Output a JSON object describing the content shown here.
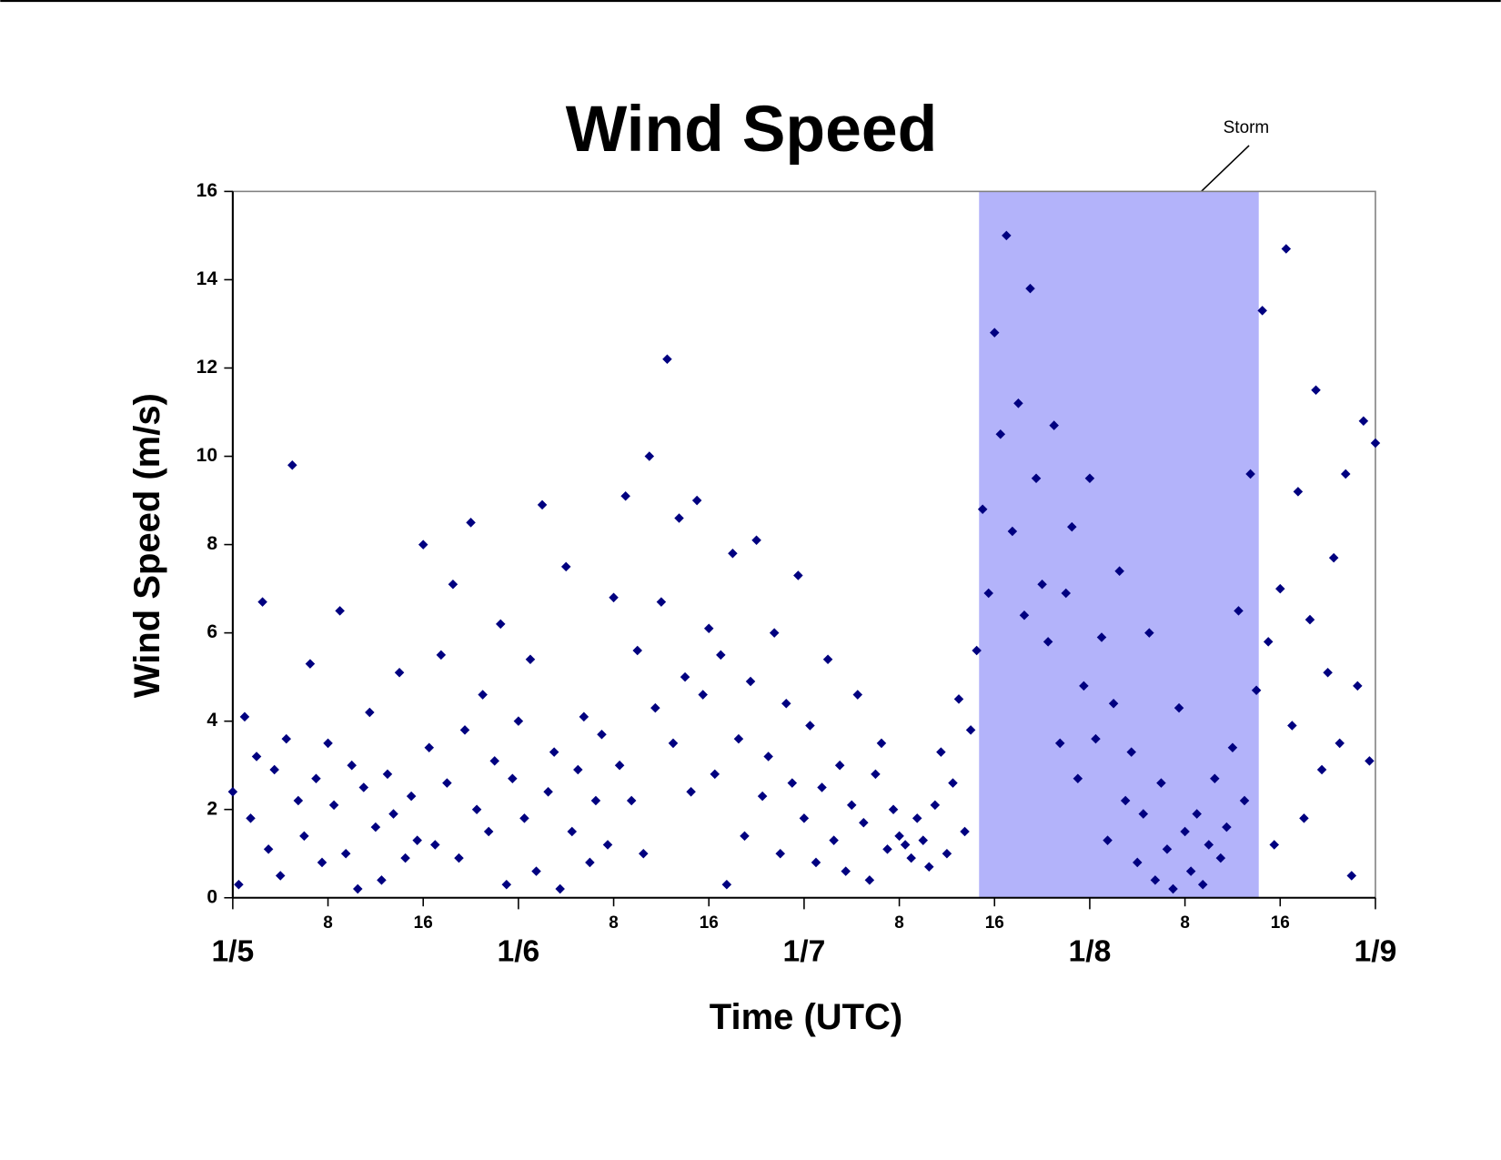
{
  "chart_data": {
    "type": "scatter",
    "title": "Wind Speed",
    "xlabel": "Time (UTC)",
    "ylabel": "Wind Speed (m/s)",
    "color": "#000080",
    "marker": "diamond",
    "shade": {
      "label": "Storm",
      "range": [
        62.7,
        86.2
      ],
      "color": "#b3b3fa"
    },
    "xlim": [
      0,
      96
    ],
    "xticks": [
      {
        "value": 0,
        "label": "1/5"
      },
      8,
      16,
      {
        "value": 24,
        "label": "1/6"
      },
      {
        "value": 32,
        "label": "8"
      },
      {
        "value": 40,
        "label": "16"
      },
      {
        "value": 48,
        "label": "1/7"
      },
      {
        "value": 56,
        "label": "8"
      },
      {
        "value": 64,
        "label": "16"
      },
      {
        "value": 72,
        "label": "1/8"
      },
      {
        "value": 80,
        "label": "8"
      },
      {
        "value": 88,
        "label": "16"
      },
      {
        "value": 96,
        "label": "1/9"
      }
    ],
    "ylim": [
      0,
      16
    ],
    "yticks": [
      0,
      2,
      4,
      6,
      8,
      10,
      12,
      14,
      16
    ],
    "grid": false,
    "x": [
      0,
      0.5,
      1,
      1.5,
      2,
      2.5,
      3,
      3.5,
      4,
      4.5,
      5,
      5.5,
      6,
      6.5,
      7,
      7.5,
      8,
      8.5,
      9,
      9.5,
      10,
      10.5,
      11,
      11.5,
      12,
      12.5,
      13,
      13.5,
      14,
      14.5,
      15,
      15.5,
      16,
      16.5,
      17,
      17.5,
      18,
      18.5,
      19,
      19.5,
      20,
      20.5,
      21,
      21.5,
      22,
      22.5,
      23,
      23.5,
      24,
      24.5,
      25,
      25.5,
      26,
      26.5,
      27,
      27.5,
      28,
      28.5,
      29,
      29.5,
      30,
      30.5,
      31,
      31.5,
      32,
      32.5,
      33,
      33.5,
      34,
      34.5,
      35,
      35.5,
      36,
      36.5,
      37,
      37.5,
      38,
      38.5,
      39,
      39.5,
      40,
      40.5,
      41,
      41.5,
      42,
      42.5,
      43,
      43.5,
      44,
      44.5,
      45,
      45.5,
      46,
      46.5,
      47,
      47.5,
      48,
      48.5,
      49,
      49.5,
      50,
      50.5,
      51,
      51.5,
      52,
      52.5,
      53,
      53.5,
      54,
      54.5,
      55,
      55.5,
      56,
      56.5,
      57,
      57.5,
      58,
      58.5,
      59,
      59.5,
      60,
      60.5,
      61,
      61.5,
      62,
      62.5,
      63,
      63.5,
      64,
      64.5,
      65,
      65.5,
      66,
      66.5,
      67,
      67.5,
      68,
      68.5,
      69,
      69.5,
      70,
      70.5,
      71,
      71.5,
      72,
      72.5,
      73,
      73.5,
      74,
      74.5,
      75,
      75.5,
      76,
      76.5,
      77,
      77.5,
      78,
      78.5,
      79,
      79.5,
      80,
      80.5,
      81,
      81.5,
      82,
      82.5,
      83,
      83.5,
      84,
      84.5,
      85,
      85.5,
      86,
      86.5,
      87,
      87.5,
      88,
      88.5,
      89,
      89.5,
      90,
      90.5,
      91,
      91.5,
      92,
      92.5,
      93,
      93.5,
      94,
      94.5,
      95,
      95.5,
      96
    ],
    "values": [
      2.4,
      0.3,
      4.1,
      1.8,
      3.2,
      6.7,
      1.1,
      2.9,
      0.5,
      3.6,
      9.8,
      2.2,
      1.4,
      5.3,
      2.7,
      0.8,
      3.5,
      2.1,
      6.5,
      1.0,
      3.0,
      0.2,
      2.5,
      4.2,
      1.6,
      0.4,
      2.8,
      1.9,
      5.1,
      0.9,
      2.3,
      1.3,
      8.0,
      3.4,
      1.2,
      5.5,
      2.6,
      7.1,
      0.9,
      3.8,
      8.5,
      2.0,
      4.6,
      1.5,
      3.1,
      6.2,
      0.3,
      2.7,
      4.0,
      1.8,
      5.4,
      0.6,
      8.9,
      2.4,
      3.3,
      0.2,
      7.5,
      1.5,
      2.9,
      4.1,
      0.8,
      2.2,
      3.7,
      1.2,
      6.8,
      3.0,
      9.1,
      2.2,
      5.6,
      1.0,
      10.0,
      4.3,
      6.7,
      12.2,
      3.5,
      8.6,
      5.0,
      2.4,
      9.0,
      4.6,
      6.1,
      2.8,
      5.5,
      0.3,
      7.8,
      3.6,
      1.4,
      4.9,
      8.1,
      2.3,
      3.2,
      6.0,
      1.0,
      4.4,
      2.6,
      7.3,
      1.8,
      3.9,
      0.8,
      2.5,
      5.4,
      1.3,
      3.0,
      0.6,
      2.1,
      4.6,
      1.7,
      0.4,
      2.8,
      3.5,
      1.1,
      2.0,
      1.4,
      1.2,
      0.9,
      1.8,
      1.3,
      0.7,
      2.1,
      3.3,
      1.0,
      2.6,
      4.5,
      1.5,
      3.8,
      5.6,
      8.8,
      6.9,
      12.8,
      10.5,
      15.0,
      8.3,
      11.2,
      6.4,
      13.8,
      9.5,
      7.1,
      5.8,
      10.7,
      3.5,
      6.9,
      8.4,
      2.7,
      4.8,
      9.5,
      3.6,
      5.9,
      1.3,
      4.4,
      7.4,
      2.2,
      3.3,
      0.8,
      1.9,
      6.0,
      0.4,
      2.6,
      1.1,
      0.2,
      4.3,
      1.5,
      0.6,
      1.9,
      0.3,
      1.2,
      2.7,
      0.9,
      1.6,
      3.4,
      6.5,
      2.2,
      9.6,
      4.7,
      13.3,
      5.8,
      1.2,
      7.0,
      14.7,
      3.9,
      9.2,
      1.8,
      6.3,
      11.5,
      2.9,
      5.1,
      7.7,
      3.5,
      9.6,
      0.5,
      4.8,
      10.8,
      3.1,
      10.3
    ]
  }
}
